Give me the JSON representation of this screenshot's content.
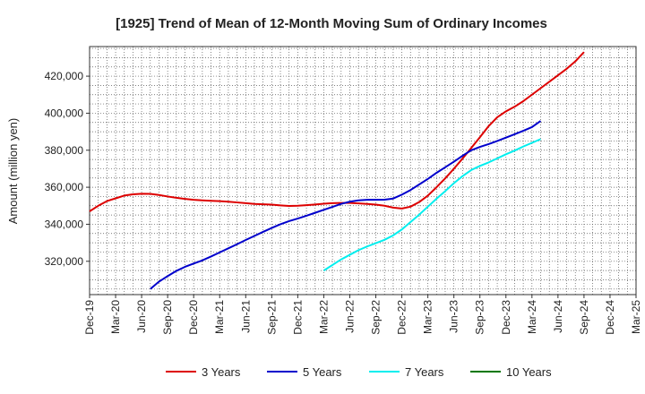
{
  "chart_data": {
    "type": "line",
    "title": "[1925]  Trend of Mean of 12-Month Moving Sum of Ordinary Incomes",
    "xlabel": "",
    "ylabel": "Amount (million yen)",
    "x_tick_labels": [
      "Dec-19",
      "Mar-20",
      "Jun-20",
      "Sep-20",
      "Dec-20",
      "Mar-21",
      "Jun-21",
      "Sep-21",
      "Dec-21",
      "Mar-22",
      "Jun-22",
      "Sep-22",
      "Dec-22",
      "Mar-23",
      "Jun-23",
      "Sep-23",
      "Dec-23",
      "Mar-24",
      "Jun-24",
      "Sep-24",
      "Dec-24",
      "Mar-25"
    ],
    "y_ticks": [
      320000,
      340000,
      360000,
      380000,
      400000,
      420000
    ],
    "y_tick_labels": [
      "320,000",
      "340,000",
      "360,000",
      "380,000",
      "400,000",
      "420,000"
    ],
    "ylim": [
      302000,
      436000
    ],
    "grid": true,
    "legend_position": "bottom",
    "series": [
      {
        "name": "3 Years",
        "color": "#dd0000",
        "start_index": 0,
        "values": [
          347000,
          350000,
          352500,
          354000,
          355500,
          356200,
          356500,
          356400,
          355800,
          355000,
          354300,
          353700,
          353200,
          352900,
          352700,
          352500,
          352200,
          351800,
          351400,
          351000,
          350800,
          350600,
          350200,
          349900,
          350000,
          350300,
          350700,
          351100,
          351400,
          351500,
          351500,
          351300,
          351000,
          350600,
          350000,
          349000,
          348500,
          349500,
          352000,
          355500,
          360000,
          364800,
          370000,
          375500,
          381200,
          387000,
          393000,
          397800,
          401000,
          403500,
          406500,
          410000,
          413500,
          417000,
          420500,
          424000,
          428000,
          433000
        ]
      },
      {
        "name": "5 Years",
        "color": "#0000cc",
        "start_index": 7,
        "values": [
          305000,
          309000,
          312000,
          314800,
          317000,
          318800,
          320500,
          322600,
          324800,
          327000,
          329200,
          331500,
          333700,
          335900,
          338000,
          340000,
          341700,
          343100,
          344600,
          346200,
          347800,
          349400,
          351000,
          352200,
          352900,
          353200,
          353200,
          353300,
          353900,
          356000,
          358500,
          361500,
          364500,
          367800,
          370800,
          373800,
          377000,
          380000,
          381800,
          383300,
          385000,
          386800,
          388600,
          390500,
          392500,
          395800
        ]
      },
      {
        "name": "7 Years",
        "color": "#00eeee",
        "start_index": 27,
        "values": [
          315000,
          318000,
          321000,
          323500,
          326000,
          328000,
          329800,
          331600,
          334000,
          337200,
          341200,
          345200,
          349500,
          353800,
          357900,
          362200,
          366000,
          369300,
          371500,
          373400,
          375600,
          377800,
          379800,
          382000,
          384000,
          386000
        ]
      },
      {
        "name": "10 Years",
        "color": "#007700",
        "start_index": 0,
        "values": []
      }
    ]
  }
}
